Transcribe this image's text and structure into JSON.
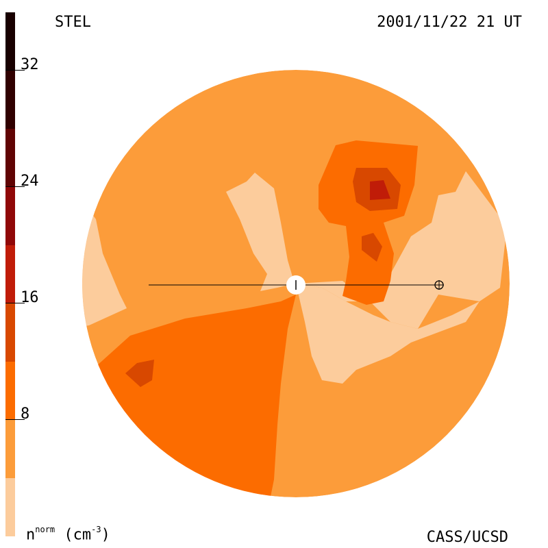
{
  "header": {
    "instrument": "STEL",
    "timestamp": "2001/11/22 21 UT"
  },
  "footer": {
    "credit": "CASS/UCSD"
  },
  "colorbar": {
    "unit_base": "n",
    "unit_superscript": "norm",
    "unit_suffix": "(cm",
    "unit_exponent": "-3",
    "unit_close": ")",
    "ticks": [
      "32",
      "24",
      "16",
      "8"
    ],
    "levels": [
      {
        "min": 0,
        "max": 4,
        "color": "#fccc9c"
      },
      {
        "min": 4,
        "max": 8,
        "color": "#fc9c3a"
      },
      {
        "min": 8,
        "max": 12,
        "color": "#fc6c00"
      },
      {
        "min": 12,
        "max": 16,
        "color": "#d84800"
      },
      {
        "min": 16,
        "max": 20,
        "color": "#c01c08"
      },
      {
        "min": 20,
        "max": 24,
        "color": "#900808"
      },
      {
        "min": 24,
        "max": 28,
        "color": "#600404"
      },
      {
        "min": 28,
        "max": 32,
        "color": "#300000"
      },
      {
        "min": 32,
        "max": 36,
        "color": "#180000"
      }
    ]
  },
  "map": {
    "background_color": "#fc9c3a",
    "sun_marker": "sun",
    "earth_marker": "earth"
  }
}
